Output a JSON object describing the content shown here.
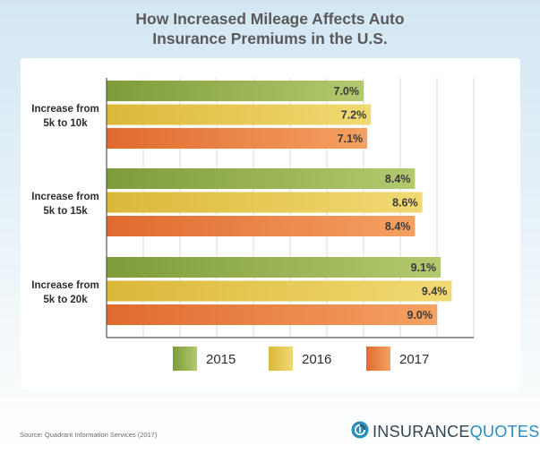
{
  "chart_data": {
    "type": "bar",
    "orientation": "horizontal",
    "title_lines": [
      "How Increased Mileage Affects Auto",
      "Insurance Premiums in the U.S."
    ],
    "categories": [
      [
        "Increase from",
        "5k to 10k"
      ],
      [
        "Increase from",
        "5k to 15k"
      ],
      [
        "Increase from",
        "5k to 20k"
      ]
    ],
    "series": [
      {
        "name": "2015",
        "values": [
          7.0,
          8.4,
          9.1
        ],
        "labels": [
          "7.0%",
          "8.4%",
          "9.1%"
        ],
        "color_from": "#7e9b3b",
        "color_to": "#b3c96e"
      },
      {
        "name": "2016",
        "values": [
          7.2,
          8.6,
          9.4
        ],
        "labels": [
          "7.2%",
          "8.6%",
          "9.4%"
        ],
        "color_from": "#dbb83a",
        "color_to": "#f1d973"
      },
      {
        "name": "2017",
        "values": [
          7.1,
          8.4,
          9.0
        ],
        "labels": [
          "7.1%",
          "8.4%",
          "9.0%"
        ],
        "color_from": "#e06a2e",
        "color_to": "#f4a162"
      }
    ],
    "xlim": [
      0,
      10
    ],
    "grid": true,
    "legend_position": "bottom"
  },
  "source": "Source: Quadrant Information Services (2017)",
  "brand": {
    "part1": "INSURANCE",
    "part2": "QUOTES",
    "icon": "insurancequotes-logo-icon"
  },
  "colors": {
    "title": "#5a5a5a",
    "grid": "#d9d9d9",
    "axis": "#555555",
    "brand_blue": "#2a8dbe",
    "brand_dark": "#33454f"
  }
}
